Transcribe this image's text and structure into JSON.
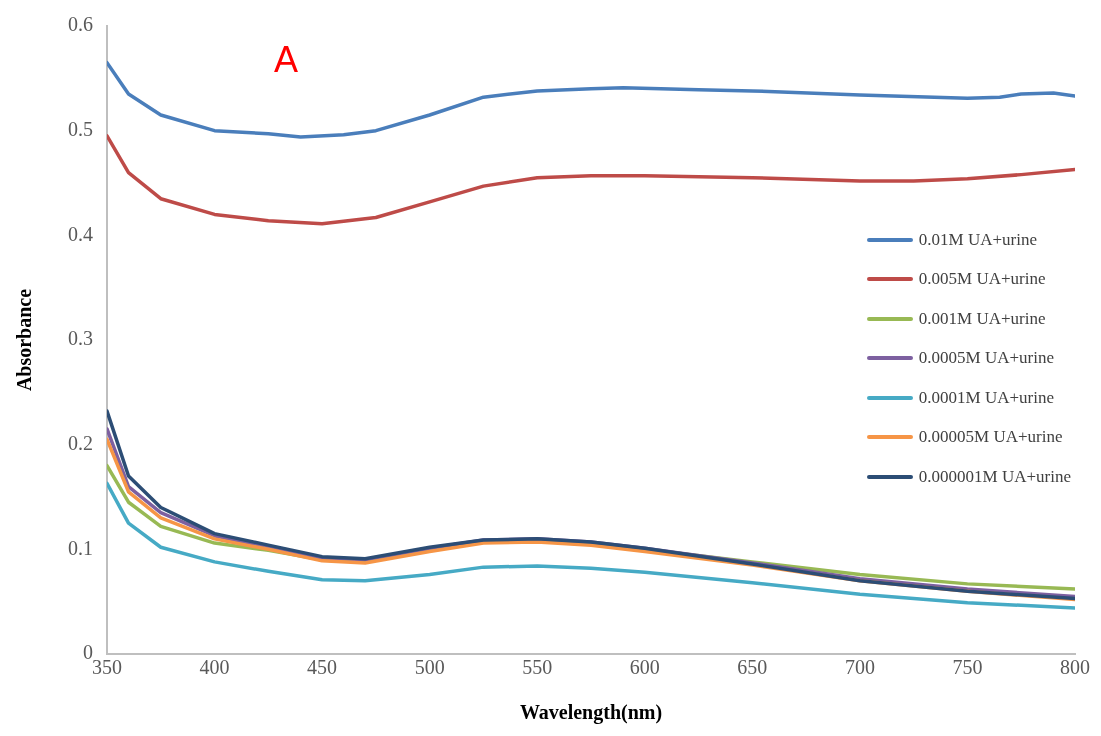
{
  "chart_data": {
    "type": "line",
    "xlabel": "Wavelength(nm)",
    "ylabel": "Absorbance",
    "annotations": [
      "A"
    ],
    "x": [
      350,
      360,
      375,
      400,
      425,
      450,
      470,
      500,
      525,
      550,
      575,
      600,
      650,
      700,
      750,
      800
    ],
    "xlim": [
      350,
      800
    ],
    "xticks": [
      350,
      400,
      450,
      500,
      550,
      600,
      650,
      700,
      750,
      800
    ],
    "ylim": [
      0,
      0.6
    ],
    "yticks": [
      0,
      0.1,
      0.2,
      0.3,
      0.4,
      0.5,
      0.6
    ],
    "grid": false,
    "legend": "right",
    "marker": "none",
    "line_style": "solid",
    "series": [
      {
        "name": "0.01M UA+urine",
        "color": "#4a7ebb",
        "x": [
          350,
          360,
          375,
          400,
          425,
          440,
          460,
          475,
          500,
          525,
          550,
          575,
          590,
          625,
          650,
          700,
          750,
          765,
          775,
          790,
          800
        ],
        "values": [
          0.565,
          0.535,
          0.515,
          0.5,
          0.497,
          0.494,
          0.496,
          0.5,
          0.515,
          0.532,
          0.538,
          0.54,
          0.541,
          0.539,
          0.538,
          0.534,
          0.531,
          0.532,
          0.535,
          0.536,
          0.533
        ]
      },
      {
        "name": "0.005M UA+urine",
        "color": "#be4b48",
        "x": [
          350,
          360,
          375,
          400,
          425,
          450,
          475,
          500,
          525,
          550,
          575,
          600,
          650,
          700,
          725,
          750,
          775,
          800
        ],
        "values": [
          0.495,
          0.46,
          0.435,
          0.42,
          0.414,
          0.411,
          0.417,
          0.432,
          0.447,
          0.455,
          0.457,
          0.457,
          0.455,
          0.452,
          0.452,
          0.454,
          0.458,
          0.463
        ]
      },
      {
        "name": "0.001M UA+urine",
        "color": "#98b954",
        "values": [
          0.18,
          0.145,
          0.122,
          0.106,
          0.099,
          0.09,
          0.089,
          0.099,
          0.107,
          0.108,
          0.106,
          0.1,
          0.088,
          0.076,
          0.067,
          0.062
        ]
      },
      {
        "name": "0.0005M UA+urine",
        "color": "#7d60a0",
        "values": [
          0.215,
          0.16,
          0.135,
          0.113,
          0.102,
          0.092,
          0.09,
          0.101,
          0.109,
          0.11,
          0.107,
          0.101,
          0.087,
          0.072,
          0.062,
          0.055
        ]
      },
      {
        "name": "0.0001M UA+urine",
        "color": "#46aac5",
        "values": [
          0.163,
          0.125,
          0.102,
          0.088,
          0.079,
          0.071,
          0.07,
          0.076,
          0.083,
          0.084,
          0.082,
          0.078,
          0.068,
          0.057,
          0.049,
          0.044
        ]
      },
      {
        "name": "0.00005M UA+urine",
        "color": "#f69546",
        "values": [
          0.205,
          0.155,
          0.13,
          0.11,
          0.1,
          0.089,
          0.087,
          0.098,
          0.106,
          0.107,
          0.104,
          0.098,
          0.085,
          0.07,
          0.06,
          0.052
        ]
      },
      {
        "name": "0.000001M UA+urine",
        "color": "#2c4d75",
        "values": [
          0.232,
          0.17,
          0.14,
          0.115,
          0.104,
          0.093,
          0.091,
          0.102,
          0.109,
          0.11,
          0.107,
          0.101,
          0.086,
          0.07,
          0.06,
          0.053
        ]
      }
    ]
  }
}
